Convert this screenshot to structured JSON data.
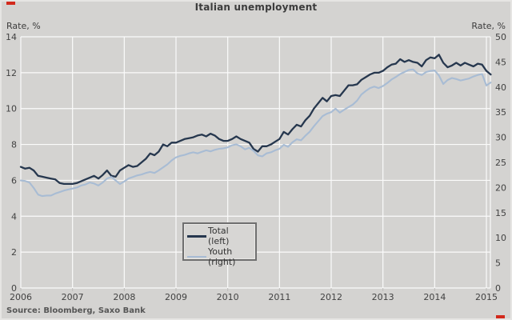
{
  "chart_data": {
    "type": "line",
    "title": "Italian unemployment",
    "source": "Source: Bloomberg, Saxo Bank",
    "grid": true,
    "background_color": "#d4d3d1",
    "gridline_color": "#fbfbfb",
    "left_axis": {
      "caption": "Rate, %",
      "min": 0,
      "max": 14,
      "ticks": [
        0,
        2,
        4,
        6,
        8,
        10,
        12,
        14
      ]
    },
    "right_axis": {
      "caption": "Rate, %",
      "min": 0,
      "max": 50,
      "ticks": [
        0,
        5,
        10,
        15,
        20,
        25,
        30,
        35,
        40,
        45,
        50
      ]
    },
    "x_axis": {
      "tick_labels": [
        "2006",
        "2007",
        "2008",
        "2009",
        "2010",
        "2011",
        "2012",
        "2013",
        "2014",
        "2015"
      ],
      "start": "2006-01",
      "end": "2015-02",
      "frequency": "monthly"
    },
    "legend": {
      "position": "bottom-center",
      "entries": [
        {
          "label": "Total (left)",
          "color": "#26374e",
          "axis": "left"
        },
        {
          "label": "Youth (right)",
          "color": "#a8bcd4",
          "axis": "right"
        }
      ]
    },
    "series": [
      {
        "name": "Total (left)",
        "axis": "left",
        "color": "#26374e",
        "values": [
          6.75,
          6.65,
          6.7,
          6.55,
          6.25,
          6.2,
          6.15,
          6.1,
          6.05,
          5.85,
          5.8,
          5.8,
          5.8,
          5.85,
          5.95,
          6.05,
          6.15,
          6.25,
          6.1,
          6.3,
          6.55,
          6.25,
          6.2,
          6.55,
          6.7,
          6.85,
          6.75,
          6.8,
          7.0,
          7.2,
          7.5,
          7.4,
          7.6,
          8.0,
          7.9,
          8.1,
          8.1,
          8.2,
          8.3,
          8.35,
          8.4,
          8.5,
          8.55,
          8.45,
          8.6,
          8.5,
          8.3,
          8.2,
          8.2,
          8.3,
          8.45,
          8.3,
          8.2,
          8.1,
          7.75,
          7.6,
          7.9,
          7.9,
          8.0,
          8.15,
          8.3,
          8.7,
          8.55,
          8.85,
          9.1,
          9.0,
          9.35,
          9.6,
          10.0,
          10.3,
          10.6,
          10.4,
          10.7,
          10.75,
          10.7,
          11.0,
          11.3,
          11.3,
          11.35,
          11.6,
          11.75,
          11.9,
          12.0,
          12.0,
          12.1,
          12.3,
          12.45,
          12.5,
          12.75,
          12.6,
          12.7,
          12.6,
          12.55,
          12.35,
          12.7,
          12.85,
          12.8,
          13.0,
          12.55,
          12.3,
          12.4,
          12.55,
          12.4,
          12.55,
          12.45,
          12.35,
          12.5,
          12.45,
          12.1,
          11.9
        ]
      },
      {
        "name": "Youth (right)",
        "axis": "right",
        "color": "#a8bcd4",
        "values": [
          21.4,
          21.3,
          21.0,
          19.9,
          18.6,
          18.3,
          18.4,
          18.4,
          18.8,
          19.1,
          19.4,
          19.6,
          19.8,
          20.0,
          20.4,
          20.6,
          21.0,
          20.8,
          20.4,
          21.0,
          21.8,
          22.1,
          21.4,
          20.7,
          21.2,
          21.8,
          22.1,
          22.4,
          22.6,
          22.9,
          23.1,
          22.9,
          23.4,
          24.0,
          24.6,
          25.4,
          26.0,
          26.3,
          26.5,
          26.8,
          27.0,
          26.8,
          27.1,
          27.4,
          27.2,
          27.5,
          27.7,
          27.8,
          28.0,
          28.4,
          28.6,
          28.2,
          27.6,
          27.9,
          27.3,
          26.4,
          26.2,
          26.8,
          27.0,
          27.4,
          27.7,
          28.5,
          28.1,
          29.0,
          29.6,
          29.4,
          30.3,
          31.1,
          32.2,
          33.2,
          34.2,
          34.7,
          35.0,
          35.7,
          34.9,
          35.5,
          36.0,
          36.5,
          37.3,
          38.5,
          39.2,
          39.8,
          40.1,
          39.8,
          40.2,
          40.8,
          41.5,
          42.0,
          42.6,
          43.0,
          43.4,
          43.5,
          42.7,
          42.4,
          43.0,
          43.2,
          43.3,
          42.3,
          40.6,
          41.4,
          41.8,
          41.6,
          41.3,
          41.5,
          41.7,
          42.1,
          42.4,
          42.6,
          40.3,
          40.9
        ]
      }
    ]
  },
  "decorations": {
    "corner_marker_color": "#d2291c"
  }
}
